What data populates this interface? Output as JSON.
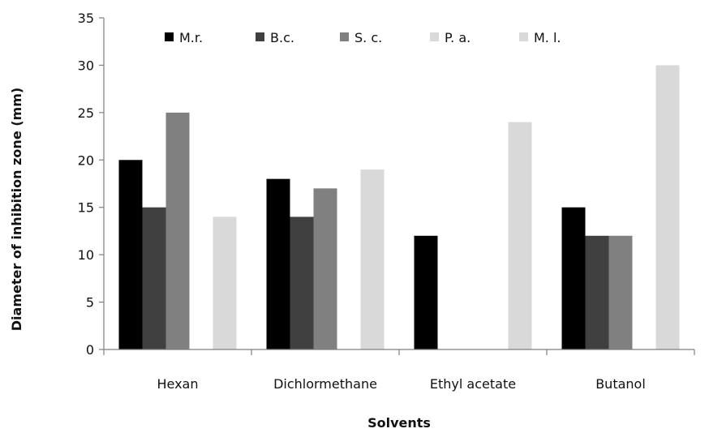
{
  "chart_data": {
    "type": "bar",
    "title": "",
    "xlabel": "Solvents",
    "ylabel": "Diameter of inhibition zone (mm)",
    "ylim": [
      0,
      35
    ],
    "yticks": [
      0,
      5,
      10,
      15,
      20,
      25,
      30,
      35
    ],
    "grid": false,
    "legend_position": "top",
    "categories": [
      "Hexan",
      "Dichlormethane",
      "Ethyl acetate",
      "Butanol"
    ],
    "series": [
      {
        "name": "M.r.",
        "color": "#000000",
        "values": [
          20,
          18,
          12,
          15
        ]
      },
      {
        "name": "B.c.",
        "color": "#404040",
        "values": [
          15,
          14,
          0,
          12
        ]
      },
      {
        "name": "S. c.",
        "color": "#808080",
        "values": [
          25,
          17,
          0,
          12
        ]
      },
      {
        "name": "P. a.",
        "color": "#d9d9d9",
        "values": [
          0,
          0,
          0,
          0
        ]
      },
      {
        "name": "M. l.",
        "color": "#d9d9d9",
        "values": [
          14,
          19,
          24,
          30
        ]
      }
    ]
  }
}
